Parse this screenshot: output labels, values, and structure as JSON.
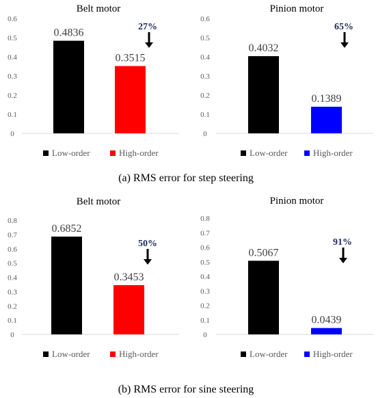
{
  "colors": {
    "low": "#000000",
    "belt_high": "#ff0000",
    "pinion_high": "#0000ff",
    "axis": "#d9d9d9",
    "text": "#595959",
    "pct": "#1f2a5a"
  },
  "chart_data": [
    {
      "type": "bar",
      "title": "Belt motor",
      "categories": [
        "Low-order",
        "High-order"
      ],
      "values": [
        0.4836,
        0.3515
      ],
      "value_labels": [
        "0.4836",
        "0.3515"
      ],
      "yticks": [
        "0",
        "0.1",
        "0.2",
        "0.3",
        "0.4",
        "0.5",
        "0.6"
      ],
      "ylim": [
        0,
        0.6
      ],
      "reduction": "27%",
      "legend": [
        "Low-order",
        "High-order"
      ],
      "legend_position": "bottom",
      "grid": false
    },
    {
      "type": "bar",
      "title": "Pinion motor",
      "categories": [
        "Low-order",
        "High-order"
      ],
      "values": [
        0.4032,
        0.1389
      ],
      "value_labels": [
        "0.4032",
        "0.1389"
      ],
      "yticks": [
        "0",
        "0.1",
        "0.2",
        "0.3",
        "0.4",
        "0.5",
        "0.6"
      ],
      "ylim": [
        0,
        0.6
      ],
      "reduction": "65%",
      "legend": [
        "Low-order",
        "High-order"
      ],
      "legend_position": "bottom",
      "grid": false
    },
    {
      "type": "bar",
      "title": "Belt motor",
      "categories": [
        "Low-order",
        "High-order"
      ],
      "values": [
        0.6852,
        0.3453
      ],
      "value_labels": [
        "0.6852",
        "0.3453"
      ],
      "yticks": [
        "0",
        "0.1",
        "0.2",
        "0.3",
        "0.4",
        "0.5",
        "0.6",
        "0.7",
        "0.8"
      ],
      "ylim": [
        0,
        0.8
      ],
      "reduction": "50%",
      "legend": [
        "Low-order",
        "High-order"
      ],
      "legend_position": "bottom",
      "grid": false
    },
    {
      "type": "bar",
      "title": "Pinion motor",
      "categories": [
        "Low-order",
        "High-order"
      ],
      "values": [
        0.5067,
        0.0439
      ],
      "value_labels": [
        "0.5067",
        "0.0439"
      ],
      "yticks": [
        "0",
        "0.1",
        "0.2",
        "0.3",
        "0.4",
        "0.5",
        "0.6",
        "0.7",
        "0.8"
      ],
      "ylim": [
        0,
        0.8
      ],
      "reduction": "91%",
      "legend": [
        "Low-order",
        "High-order"
      ],
      "legend_position": "bottom",
      "grid": false
    }
  ],
  "captions": {
    "a": "(a) RMS error for step steering",
    "b": "(b) RMS error for sine steering"
  }
}
